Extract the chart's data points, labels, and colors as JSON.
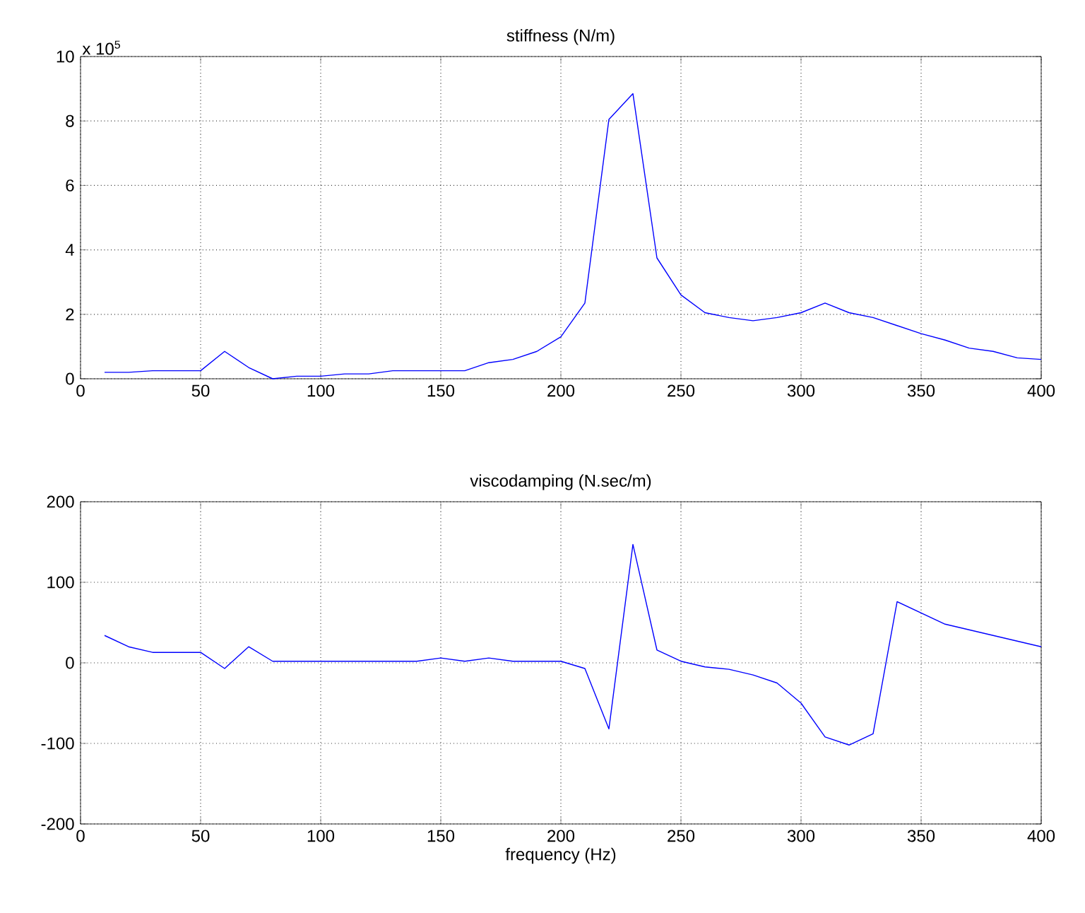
{
  "chart_data": [
    {
      "type": "line",
      "title": "stiffness  (N/m)",
      "annotations": [
        "x 10$^{5}$"
      ],
      "x": [
        10,
        20,
        30,
        40,
        50,
        60,
        70,
        80,
        90,
        100,
        110,
        120,
        130,
        140,
        150,
        160,
        170,
        180,
        190,
        200,
        210,
        220,
        230,
        240,
        250,
        260,
        270,
        280,
        290,
        300,
        310,
        320,
        330,
        340,
        350,
        360,
        370,
        380,
        390,
        400
      ],
      "values": [
        0.2,
        0.2,
        0.25,
        0.25,
        0.25,
        0.85,
        0.35,
        0.0,
        0.08,
        0.08,
        0.15,
        0.15,
        0.25,
        0.25,
        0.25,
        0.25,
        0.5,
        0.6,
        0.85,
        1.3,
        2.35,
        8.05,
        8.85,
        3.75,
        2.6,
        2.05,
        1.9,
        1.8,
        1.9,
        2.05,
        2.35,
        2.05,
        1.9,
        1.65,
        1.4,
        1.2,
        0.95,
        0.85,
        0.65,
        0.6
      ],
      "color": "#0000ff",
      "xlim": [
        0,
        400
      ],
      "ylim": [
        0,
        10
      ],
      "xticks": [
        0,
        50,
        100,
        150,
        200,
        250,
        300,
        350,
        400
      ],
      "yticks": [
        0,
        2,
        4,
        6,
        8,
        10
      ],
      "grid": true
    },
    {
      "type": "line",
      "title": "viscodamping (N.sec/m)",
      "xlabel": "frequency (Hz)",
      "x": [
        10,
        20,
        30,
        40,
        50,
        60,
        70,
        80,
        90,
        100,
        110,
        120,
        130,
        140,
        150,
        160,
        170,
        180,
        190,
        200,
        210,
        220,
        230,
        240,
        250,
        260,
        270,
        280,
        290,
        300,
        310,
        320,
        330,
        340,
        350,
        360,
        370,
        380,
        390,
        400
      ],
      "values": [
        34,
        20,
        13,
        13,
        13,
        -7,
        20,
        2,
        2,
        2,
        2,
        2,
        2,
        2,
        6,
        2,
        6,
        2,
        2,
        2,
        -7,
        -82,
        147,
        16,
        2,
        -5,
        -8,
        -15,
        -25,
        -50,
        -92,
        -102,
        -88,
        76,
        62,
        48,
        41,
        34,
        27,
        20
      ],
      "color": "#0000ff",
      "xlim": [
        0,
        400
      ],
      "ylim": [
        -200,
        200
      ],
      "xticks": [
        0,
        50,
        100,
        150,
        200,
        250,
        300,
        350,
        400
      ],
      "yticks": [
        -200,
        -100,
        0,
        100,
        200
      ],
      "grid": true
    }
  ]
}
